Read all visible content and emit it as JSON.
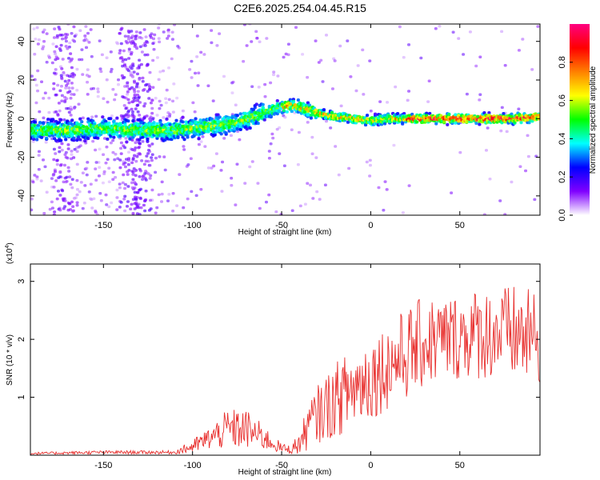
{
  "title": "C2E6.2025.254.04.45.R15",
  "chart_data": [
    {
      "type": "heatmap",
      "name": "spectrogram",
      "xlabel": "Height of straight line (km)",
      "ylabel": "Frequency (Hz)",
      "xlim": [
        -191,
        95
      ],
      "ylim": [
        -50,
        49
      ],
      "xticks": [
        -150,
        -100,
        -50,
        0,
        50
      ],
      "yticks": [
        -40,
        -20,
        0,
        20,
        40
      ],
      "colorbar": {
        "label": "Normalized spectral amplitude",
        "range": [
          0,
          1
        ],
        "ticks": [
          "0.0",
          "0.2",
          "0.4",
          "0.6",
          "0.8"
        ],
        "tick_values": [
          0.0,
          0.2,
          0.4,
          0.6,
          0.8
        ],
        "colors": [
          "#ffffff",
          "#8000ff",
          "#0000ff",
          "#00ffff",
          "#00ff00",
          "#ffff00",
          "#ff8000",
          "#ff0000",
          "#ff0080"
        ]
      },
      "ridge": {
        "x": [
          -190,
          -170,
          -150,
          -130,
          -110,
          -90,
          -75,
          -60,
          -50,
          -45,
          -40,
          -30,
          -20,
          -10,
          0,
          10,
          20,
          40,
          60,
          80,
          95
        ],
        "frequency": [
          -6,
          -6,
          -5,
          -6,
          -6,
          -4,
          -2,
          3,
          6,
          7,
          6,
          3,
          1,
          0,
          -1,
          0,
          0,
          0,
          0,
          0,
          1
        ]
      }
    },
    {
      "type": "line",
      "name": "snr",
      "xlabel": "Height of straight line (km)",
      "ylabel": "SNR (10 * v/v)",
      "multiplier_label": "(x10",
      "multiplier_exp": "4",
      "multiplier_close": ")",
      "xlim": [
        -191,
        95
      ],
      "ylim": [
        0,
        3.3
      ],
      "xticks": [
        -150,
        -100,
        -50,
        0,
        50
      ],
      "yticks": [
        1,
        2,
        3
      ],
      "color": "#e8302e",
      "envelope": {
        "x": [
          -191,
          -150,
          -110,
          -100,
          -90,
          -80,
          -70,
          -60,
          -50,
          -45,
          -40,
          -35,
          -30,
          -20,
          -10,
          0,
          10,
          20,
          30,
          40,
          50,
          60,
          70,
          80,
          95
        ],
        "mean": [
          0.03,
          0.05,
          0.05,
          0.15,
          0.3,
          0.45,
          0.45,
          0.3,
          0.12,
          0.1,
          0.2,
          0.5,
          0.7,
          0.95,
          1.15,
          1.35,
          1.55,
          1.75,
          1.95,
          2.0,
          2.05,
          2.1,
          2.1,
          2.1,
          2.0
        ],
        "amplitude": [
          0.02,
          0.03,
          0.03,
          0.12,
          0.2,
          0.35,
          0.35,
          0.22,
          0.08,
          0.08,
          0.2,
          0.4,
          0.5,
          0.65,
          0.7,
          0.75,
          0.75,
          0.8,
          0.8,
          0.75,
          0.75,
          0.8,
          0.8,
          0.85,
          0.8
        ]
      }
    }
  ]
}
